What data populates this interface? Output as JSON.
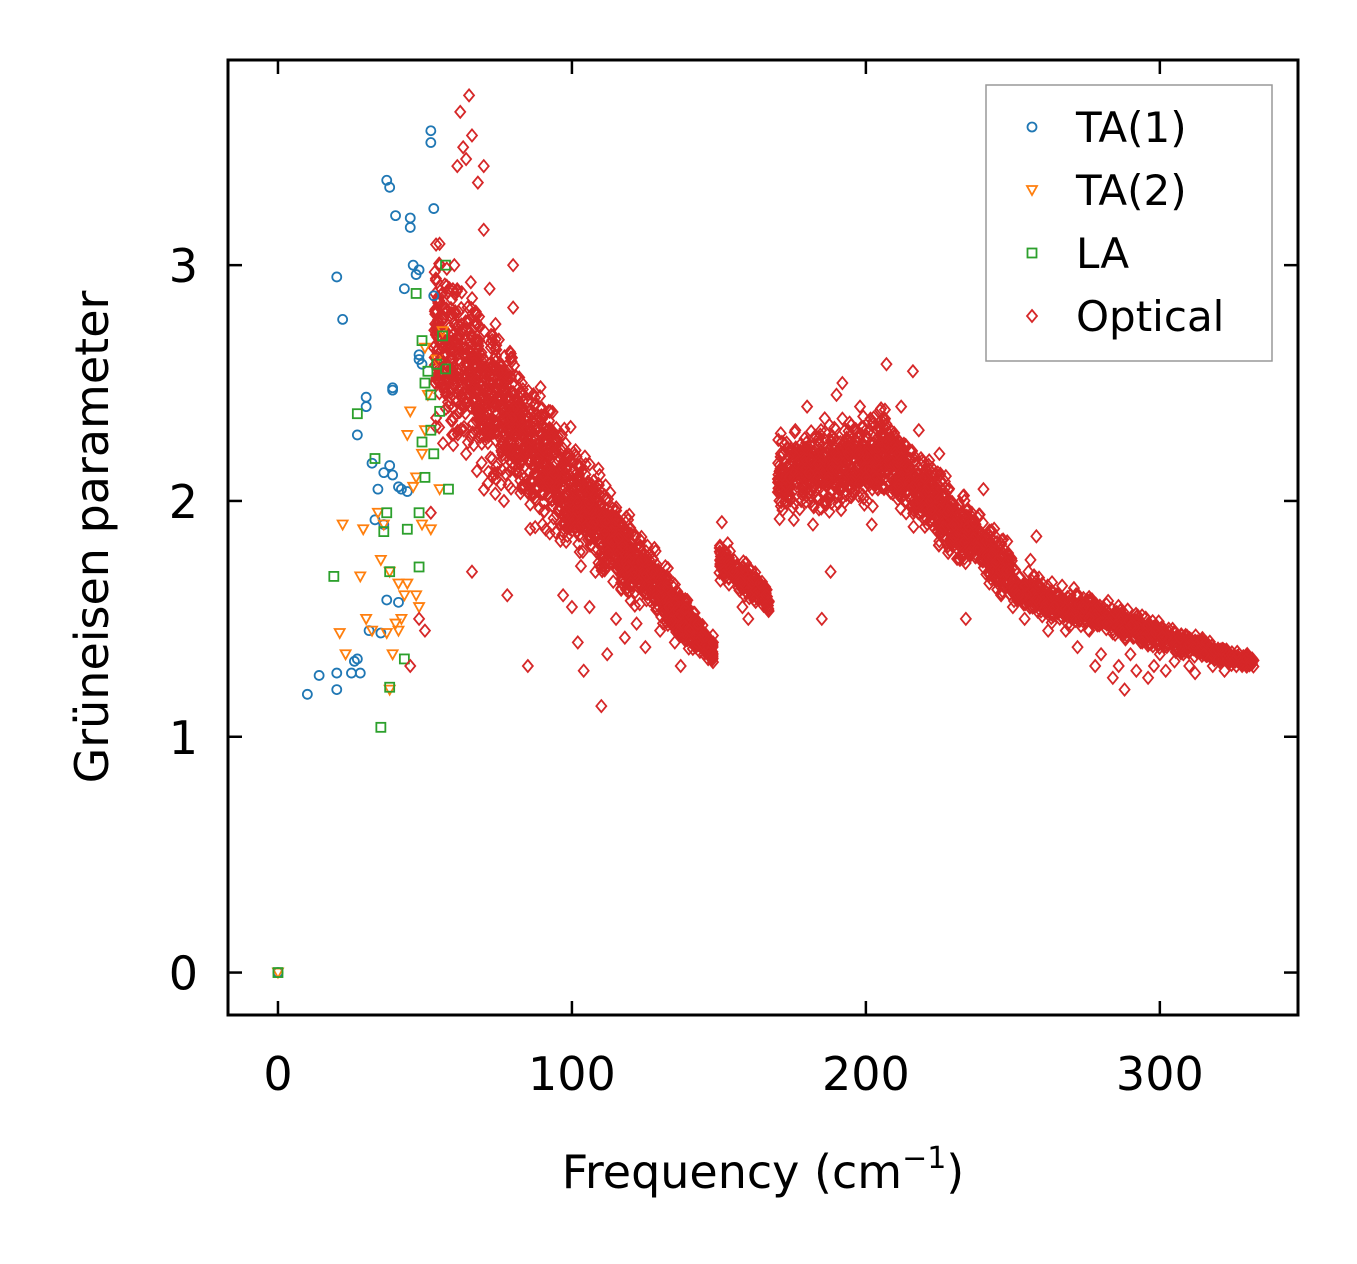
{
  "chart_data": {
    "type": "scatter",
    "title": "",
    "xlabel": "Frequency (cm",
    "xlabel_superscript": "−1",
    "xlabel_suffix": ")",
    "ylabel": "Grüneisen parameter",
    "xlim": [
      -17,
      347
    ],
    "ylim": [
      -0.18,
      3.87
    ],
    "xticks": [
      0,
      100,
      200,
      300
    ],
    "yticks": [
      0,
      1,
      2,
      3
    ],
    "xtick_labels": [
      "0",
      "100",
      "200",
      "300"
    ],
    "ytick_labels": [
      "0",
      "1",
      "2",
      "3"
    ],
    "grid": false,
    "legend_position": "top-right",
    "series": [
      {
        "name": "TA(1)",
        "marker": "circle",
        "color": "#1f77b4",
        "points": [
          [
            0,
            0
          ],
          [
            10,
            1.18
          ],
          [
            14,
            1.26
          ],
          [
            20,
            1.2
          ],
          [
            20,
            1.27
          ],
          [
            20,
            2.95
          ],
          [
            22,
            2.77
          ],
          [
            25,
            1.27
          ],
          [
            26,
            1.32
          ],
          [
            27,
            1.33
          ],
          [
            27,
            2.28
          ],
          [
            28,
            1.27
          ],
          [
            30,
            2.4
          ],
          [
            30,
            2.44
          ],
          [
            31,
            1.45
          ],
          [
            32,
            2.16
          ],
          [
            33,
            1.92
          ],
          [
            34,
            2.05
          ],
          [
            35,
            1.44
          ],
          [
            36,
            1.9
          ],
          [
            36,
            2.12
          ],
          [
            37,
            1.58
          ],
          [
            37,
            3.36
          ],
          [
            38,
            2.15
          ],
          [
            38,
            3.33
          ],
          [
            39,
            2.47
          ],
          [
            39,
            2.48
          ],
          [
            39,
            2.11
          ],
          [
            40,
            3.21
          ],
          [
            41,
            2.06
          ],
          [
            41,
            1.57
          ],
          [
            42,
            2.05
          ],
          [
            43,
            2.9
          ],
          [
            44,
            2.04
          ],
          [
            45,
            3.2
          ],
          [
            45,
            3.16
          ],
          [
            46,
            3.0
          ],
          [
            47,
            2.96
          ],
          [
            48,
            2.6
          ],
          [
            48,
            2.62
          ],
          [
            48,
            2.98
          ],
          [
            49,
            2.58
          ],
          [
            52,
            3.57
          ],
          [
            52,
            3.52
          ],
          [
            53,
            3.24
          ],
          [
            53,
            2.87
          ]
        ]
      },
      {
        "name": "TA(2)",
        "marker": "triangle",
        "color": "#ff7f0e",
        "points": [
          [
            0,
            0
          ],
          [
            21,
            1.44
          ],
          [
            22,
            1.9
          ],
          [
            23,
            1.35
          ],
          [
            28,
            1.68
          ],
          [
            29,
            1.88
          ],
          [
            30,
            1.5
          ],
          [
            32,
            1.45
          ],
          [
            34,
            1.95
          ],
          [
            35,
            1.75
          ],
          [
            36,
            1.9
          ],
          [
            37,
            1.44
          ],
          [
            38,
            1.7
          ],
          [
            38,
            1.2
          ],
          [
            39,
            1.35
          ],
          [
            40,
            1.48
          ],
          [
            41,
            1.45
          ],
          [
            41,
            1.65
          ],
          [
            42,
            1.5
          ],
          [
            43,
            1.6
          ],
          [
            44,
            2.28
          ],
          [
            44,
            1.65
          ],
          [
            45,
            2.38
          ],
          [
            46,
            2.06
          ],
          [
            47,
            2.1
          ],
          [
            47,
            1.6
          ],
          [
            48,
            1.55
          ],
          [
            49,
            2.2
          ],
          [
            49,
            1.9
          ],
          [
            50,
            2.3
          ],
          [
            50,
            2.65
          ],
          [
            51,
            2.45
          ],
          [
            52,
            1.88
          ],
          [
            54,
            2.6
          ],
          [
            55,
            2.05
          ],
          [
            56,
            2.72
          ]
        ]
      },
      {
        "name": "LA",
        "marker": "square",
        "color": "#2ca02c",
        "points": [
          [
            0,
            0
          ],
          [
            19,
            1.68
          ],
          [
            27,
            2.37
          ],
          [
            33,
            2.18
          ],
          [
            35,
            1.04
          ],
          [
            36,
            1.87
          ],
          [
            37,
            1.95
          ],
          [
            38,
            1.21
          ],
          [
            38,
            1.7
          ],
          [
            43,
            1.33
          ],
          [
            44,
            1.88
          ],
          [
            47,
            2.88
          ],
          [
            48,
            1.95
          ],
          [
            48,
            1.72
          ],
          [
            49,
            2.68
          ],
          [
            49,
            2.25
          ],
          [
            50,
            2.5
          ],
          [
            50,
            2.1
          ],
          [
            51,
            2.55
          ],
          [
            52,
            2.45
          ],
          [
            52,
            2.3
          ],
          [
            53,
            2.2
          ],
          [
            54,
            2.58
          ],
          [
            55,
            2.38
          ],
          [
            56,
            2.7
          ],
          [
            57,
            3.0
          ],
          [
            57,
            2.56
          ],
          [
            58,
            2.05
          ]
        ]
      },
      {
        "name": "Optical",
        "marker": "diamond",
        "color": "#d62728",
        "points": [
          [
            45,
            1.3
          ],
          [
            48,
            1.5
          ],
          [
            50,
            1.45
          ],
          [
            52,
            1.95
          ],
          [
            55,
            2.6
          ],
          [
            58,
            2.4
          ],
          [
            60,
            3.0
          ],
          [
            61,
            3.42
          ],
          [
            62,
            3.65
          ],
          [
            63,
            3.5
          ],
          [
            64,
            3.45
          ],
          [
            64,
            2.2
          ],
          [
            65,
            3.72
          ],
          [
            66,
            3.55
          ],
          [
            66,
            1.7
          ],
          [
            68,
            3.35
          ],
          [
            70,
            3.42
          ],
          [
            70,
            3.15
          ],
          [
            72,
            2.9
          ],
          [
            74,
            2.75
          ],
          [
            76,
            2.5
          ],
          [
            78,
            2.35
          ],
          [
            78,
            1.6
          ],
          [
            80,
            3.0
          ],
          [
            80,
            2.82
          ],
          [
            81,
            2.28
          ],
          [
            83,
            2.5
          ],
          [
            85,
            2.42
          ],
          [
            85,
            1.3
          ],
          [
            88,
            2.3
          ],
          [
            90,
            1.9
          ],
          [
            92,
            2.25
          ],
          [
            95,
            2.0
          ],
          [
            97,
            1.6
          ],
          [
            100,
            1.55
          ],
          [
            102,
            1.4
          ],
          [
            104,
            1.28
          ],
          [
            106,
            1.55
          ],
          [
            108,
            1.7
          ],
          [
            110,
            1.72
          ],
          [
            110,
            1.13
          ],
          [
            112,
            1.35
          ],
          [
            115,
            1.5
          ],
          [
            118,
            1.42
          ],
          [
            120,
            1.65
          ],
          [
            122,
            1.48
          ],
          [
            124,
            1.75
          ],
          [
            125,
            1.38
          ],
          [
            128,
            1.58
          ],
          [
            130,
            1.45
          ],
          [
            133,
            1.55
          ],
          [
            135,
            1.4
          ],
          [
            137,
            1.3
          ],
          [
            140,
            1.45
          ],
          [
            142,
            1.38
          ],
          [
            145,
            1.35
          ],
          [
            148,
            1.4
          ],
          [
            151,
            1.91
          ],
          [
            153,
            1.82
          ],
          [
            155,
            1.7
          ],
          [
            157,
            1.62
          ],
          [
            158,
            1.55
          ],
          [
            160,
            1.5
          ],
          [
            162,
            1.58
          ],
          [
            164,
            1.65
          ],
          [
            166,
            1.6
          ],
          [
            172,
            2.2
          ],
          [
            174,
            2.1
          ],
          [
            176,
            2.3
          ],
          [
            178,
            2.0
          ],
          [
            180,
            2.4
          ],
          [
            182,
            1.9
          ],
          [
            184,
            2.25
          ],
          [
            185,
            1.5
          ],
          [
            186,
            2.35
          ],
          [
            188,
            1.7
          ],
          [
            190,
            2.45
          ],
          [
            192,
            2.5
          ],
          [
            194,
            2.2
          ],
          [
            196,
            2.3
          ],
          [
            198,
            2.4
          ],
          [
            200,
            2.1
          ],
          [
            202,
            1.9
          ],
          [
            205,
            2.3
          ],
          [
            207,
            2.58
          ],
          [
            210,
            2.2
          ],
          [
            212,
            2.4
          ],
          [
            214,
            2.15
          ],
          [
            216,
            2.55
          ],
          [
            218,
            2.3
          ],
          [
            220,
            2.1
          ],
          [
            222,
            2.0
          ],
          [
            225,
            2.2
          ],
          [
            228,
            2.05
          ],
          [
            230,
            1.9
          ],
          [
            232,
            1.75
          ],
          [
            234,
            1.5
          ],
          [
            236,
            1.95
          ],
          [
            238,
            1.8
          ],
          [
            240,
            2.05
          ],
          [
            242,
            1.65
          ],
          [
            244,
            1.85
          ],
          [
            246,
            1.6
          ],
          [
            248,
            1.7
          ],
          [
            250,
            1.55
          ],
          [
            252,
            1.6
          ],
          [
            254,
            1.5
          ],
          [
            256,
            1.75
          ],
          [
            258,
            1.85
          ],
          [
            260,
            1.65
          ],
          [
            262,
            1.45
          ],
          [
            264,
            1.55
          ],
          [
            266,
            1.6
          ],
          [
            268,
            1.45
          ],
          [
            270,
            1.5
          ],
          [
            272,
            1.38
          ],
          [
            274,
            1.55
          ],
          [
            276,
            1.45
          ],
          [
            278,
            1.3
          ],
          [
            280,
            1.35
          ],
          [
            282,
            1.48
          ],
          [
            284,
            1.25
          ],
          [
            286,
            1.3
          ],
          [
            288,
            1.2
          ],
          [
            290,
            1.35
          ],
          [
            292,
            1.28
          ],
          [
            294,
            1.4
          ],
          [
            296,
            1.25
          ],
          [
            298,
            1.3
          ],
          [
            300,
            1.35
          ],
          [
            302,
            1.28
          ],
          [
            305,
            1.32
          ],
          [
            308,
            1.35
          ],
          [
            310,
            1.3
          ],
          [
            312,
            1.27
          ],
          [
            315,
            1.35
          ],
          [
            318,
            1.3
          ],
          [
            320,
            1.33
          ],
          [
            322,
            1.28
          ],
          [
            325,
            1.32
          ],
          [
            328,
            1.3
          ],
          [
            331,
            1.31
          ]
        ]
      }
    ],
    "optical_bands": [
      {
        "x_range": [
          53,
          148
        ],
        "y_center_start": 2.7,
        "y_center_end": 1.36,
        "spread_start": 0.55,
        "spread_end": 0.08,
        "count": 1900
      },
      {
        "x_range": [
          150,
          167
        ],
        "y_center_start": 1.75,
        "y_center_end": 1.58,
        "spread_start": 0.1,
        "spread_end": 0.08,
        "count": 220
      },
      {
        "x_range": [
          170,
          210
        ],
        "y_center_start": 2.1,
        "y_center_end": 2.2,
        "spread_start": 0.22,
        "spread_end": 0.25,
        "count": 700
      },
      {
        "x_range": [
          210,
          250
        ],
        "y_center_start": 2.15,
        "y_center_end": 1.68,
        "spread_start": 0.22,
        "spread_end": 0.15,
        "count": 650
      },
      {
        "x_range": [
          250,
          332
        ],
        "y_center_start": 1.62,
        "y_center_end": 1.31,
        "spread_start": 0.12,
        "spread_end": 0.04,
        "count": 900
      }
    ]
  }
}
